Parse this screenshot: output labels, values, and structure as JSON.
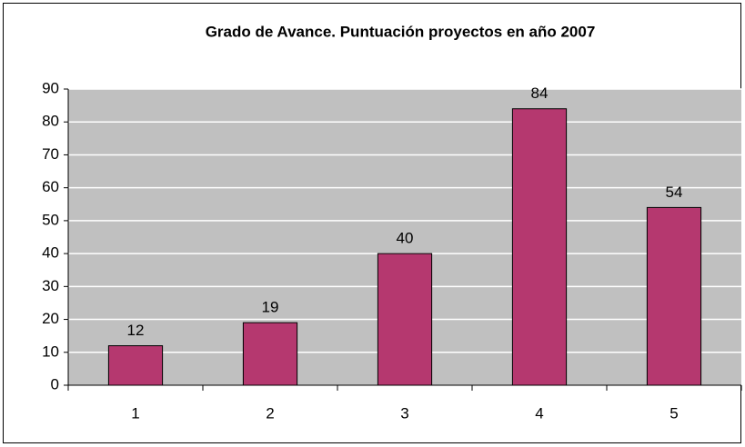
{
  "chart_data": {
    "type": "bar",
    "title": "Grado de Avance. Puntuación proyectos en año 2007",
    "categories": [
      "1",
      "2",
      "3",
      "4",
      "5"
    ],
    "values": [
      12,
      19,
      40,
      84,
      54
    ],
    "color": "#b5386f",
    "ylim": [
      0,
      90
    ],
    "yticks": [
      0,
      10,
      20,
      30,
      40,
      50,
      60,
      70,
      80,
      90
    ],
    "grid": true
  }
}
